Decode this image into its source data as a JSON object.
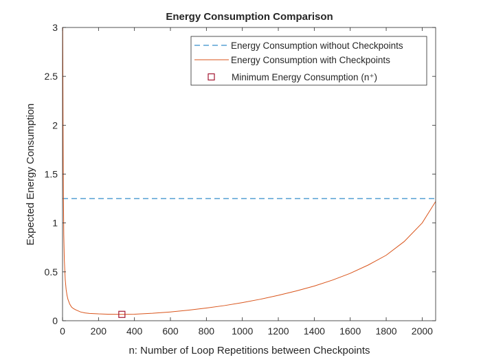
{
  "chart_data": {
    "type": "line",
    "title": "Energy Consumption Comparison",
    "xlabel": "n: Number of Loop Repetitions between Checkpoints",
    "ylabel": "Expected Energy Consumption",
    "xlim": [
      0,
      2075
    ],
    "ylim": [
      0,
      3
    ],
    "xticks": [
      0,
      200,
      400,
      600,
      800,
      1000,
      1200,
      1400,
      1600,
      1800,
      2000
    ],
    "yticks": [
      0,
      0.5,
      1,
      1.5,
      2,
      2.5,
      3
    ],
    "ytick_labels": [
      "0",
      "0.5",
      "1",
      "1.5",
      "2",
      "2.5",
      "3"
    ],
    "grid": false,
    "legend_position": "top-right",
    "series": [
      {
        "name": "Energy Consumption without Checkpoints",
        "style": "dashed",
        "color": "#0072BD",
        "x": [
          0,
          2075
        ],
        "y": [
          1.25,
          1.25
        ]
      },
      {
        "name": "Energy Consumption with Checkpoints",
        "style": "solid",
        "color": "#D95319",
        "x": [
          1,
          2,
          3,
          4,
          5,
          7,
          10,
          15,
          20,
          25,
          30,
          40,
          50,
          60,
          75,
          100,
          125,
          150,
          200,
          250,
          300,
          330,
          400,
          500,
          600,
          700,
          800,
          900,
          1000,
          1100,
          1200,
          1300,
          1400,
          1500,
          1600,
          1700,
          1800,
          1900,
          2000,
          2075
        ],
        "y": [
          3.0,
          2.55,
          2.0,
          1.55,
          1.25,
          0.88,
          0.62,
          0.42,
          0.32,
          0.26,
          0.22,
          0.17,
          0.14,
          0.125,
          0.11,
          0.09,
          0.08,
          0.075,
          0.07,
          0.067,
          0.066,
          0.065,
          0.067,
          0.076,
          0.09,
          0.108,
          0.13,
          0.155,
          0.185,
          0.22,
          0.26,
          0.305,
          0.355,
          0.415,
          0.485,
          0.57,
          0.67,
          0.81,
          1.0,
          1.22
        ]
      },
      {
        "name": "Minimum Energy Consumption (n⁺)",
        "style": "marker",
        "marker": "square",
        "color": "#A2142F",
        "x": [
          330
        ],
        "y": [
          0.065
        ]
      }
    ]
  }
}
